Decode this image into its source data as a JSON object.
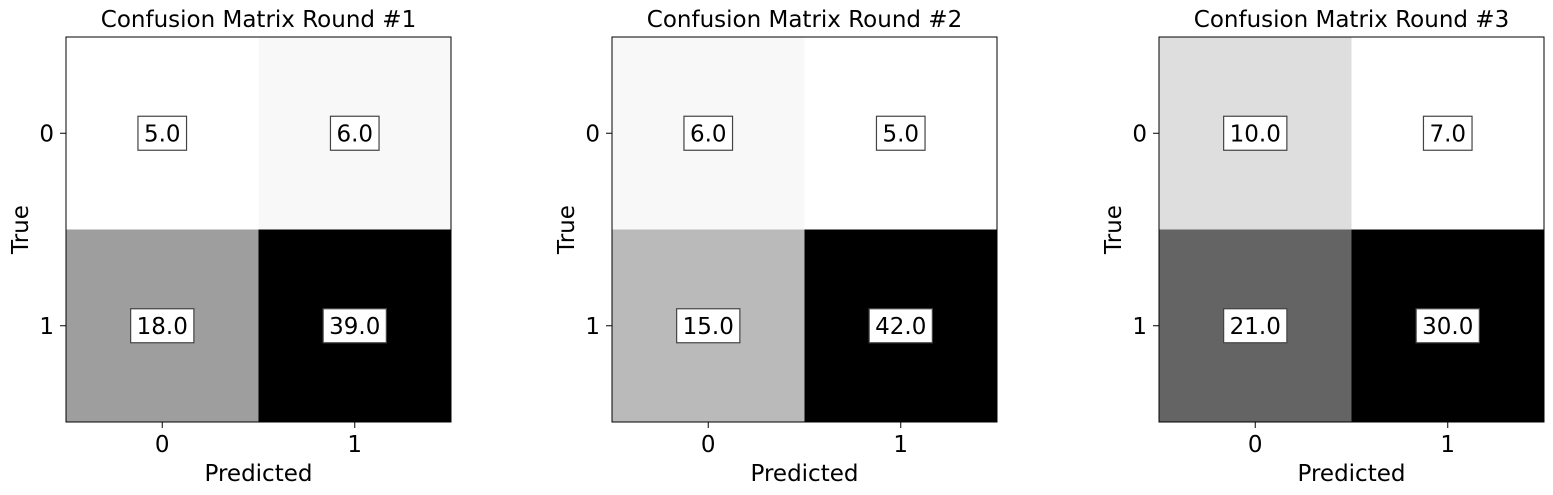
{
  "chart_data": [
    {
      "type": "heatmap",
      "title": "Confusion Matrix Round #1",
      "xlabel": "Predicted",
      "ylabel": "True",
      "x_categories": [
        "0",
        "1"
      ],
      "y_categories": [
        "0",
        "1"
      ],
      "values": [
        [
          5.0,
          6.0
        ],
        [
          18.0,
          39.0
        ]
      ],
      "value_labels": [
        [
          "5.0",
          "6.0"
        ],
        [
          "18.0",
          "39.0"
        ]
      ],
      "colormap": "Greys"
    },
    {
      "type": "heatmap",
      "title": "Confusion Matrix Round #2",
      "xlabel": "Predicted",
      "ylabel": "True",
      "x_categories": [
        "0",
        "1"
      ],
      "y_categories": [
        "0",
        "1"
      ],
      "values": [
        [
          6.0,
          5.0
        ],
        [
          15.0,
          42.0
        ]
      ],
      "value_labels": [
        [
          "6.0",
          "5.0"
        ],
        [
          "15.0",
          "42.0"
        ]
      ],
      "colormap": "Greys"
    },
    {
      "type": "heatmap",
      "title": "Confusion Matrix Round #3",
      "xlabel": "Predicted",
      "ylabel": "True",
      "x_categories": [
        "0",
        "1"
      ],
      "y_categories": [
        "0",
        "1"
      ],
      "values": [
        [
          10.0,
          7.0
        ],
        [
          21.0,
          30.0
        ]
      ],
      "value_labels": [
        [
          "10.0",
          "7.0"
        ],
        [
          "21.0",
          "30.0"
        ]
      ],
      "colormap": "Greys"
    }
  ]
}
